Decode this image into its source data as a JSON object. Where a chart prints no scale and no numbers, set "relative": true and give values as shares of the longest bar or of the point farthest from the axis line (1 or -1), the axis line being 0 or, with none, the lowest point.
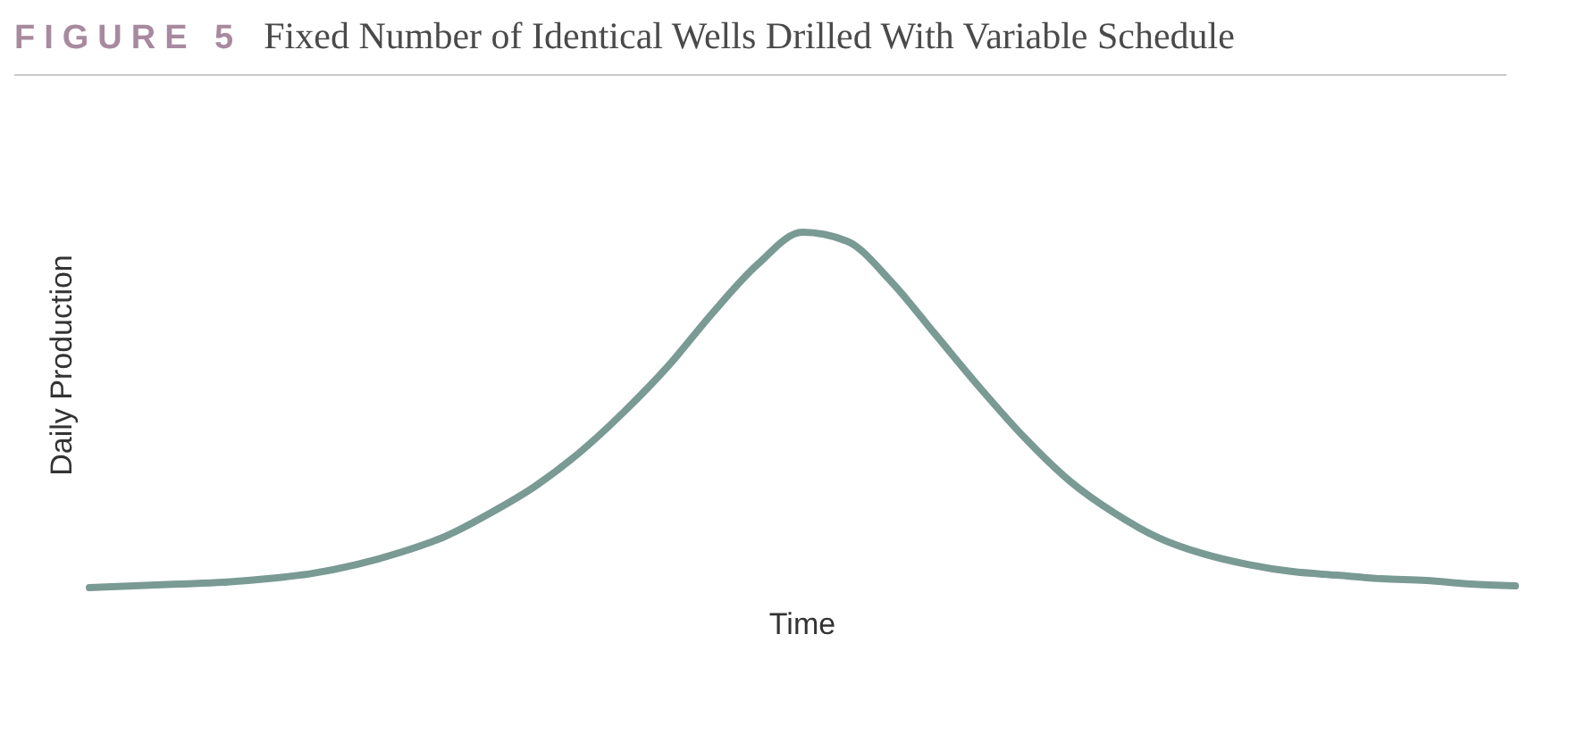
{
  "chart_data": {
    "type": "line",
    "title": "FIGURE 5",
    "subtitle": "Fixed Number of Identical Wells Drilled With Variable Schedule",
    "xlabel": "Time",
    "ylabel": "Daily Production",
    "relative": true,
    "categories": [
      null,
      null,
      null,
      null,
      null,
      null,
      null,
      null,
      null,
      null,
      null,
      null,
      null,
      null,
      null,
      null,
      null,
      null,
      null,
      null,
      null,
      null,
      null,
      null,
      null,
      null,
      null,
      null,
      null,
      null,
      null,
      null,
      null
    ],
    "series": [
      {
        "color": "#7a9a94",
        "values": [
          0,
          0.005,
          0.01,
          0.015,
          0.025,
          0.04,
          0.065,
          0.1,
          0.145,
          0.21,
          0.285,
          0.38,
          0.495,
          0.625,
          0.775,
          0.91,
          1,
          0.975,
          0.86,
          0.71,
          0.56,
          0.42,
          0.3,
          0.21,
          0.14,
          0.095,
          0.065,
          0.045,
          0.035,
          0.025,
          0.02,
          0.01,
          0.005
        ]
      }
    ]
  }
}
